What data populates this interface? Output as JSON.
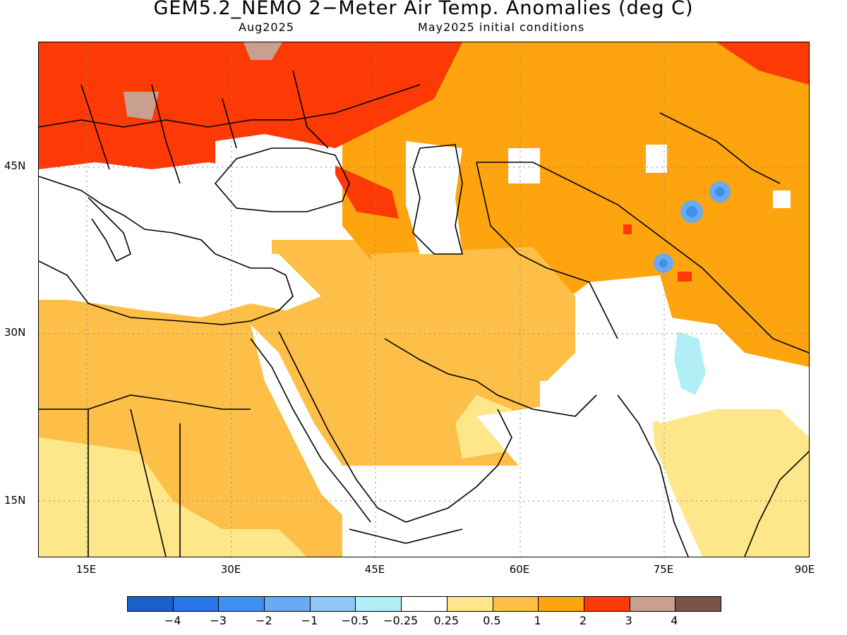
{
  "title": "GEM5.2_NEMO 2−Meter Air Temp. Anomalies (deg C)",
  "subtitle_left": "Aug2025",
  "subtitle_right": "May2025 initial conditions",
  "lat_labels": [
    "45N",
    "30N",
    "15N"
  ],
  "lon_labels": [
    "15E",
    "30E",
    "45E",
    "60E",
    "75E",
    "90E"
  ],
  "colorbar": {
    "colors": [
      "#1a5fcc",
      "#2a75e6",
      "#3f8ff0",
      "#6aaaf3",
      "#8ec6f5",
      "#b2eef5",
      "#ffffff",
      "#fee78a",
      "#fdbf47",
      "#fda40e",
      "#fd3a05",
      "#c9a08f",
      "#7a5445"
    ],
    "labels": [
      "−4",
      "−3",
      "−2",
      "−1",
      "−0.5",
      "−0.25",
      "0.25",
      "0.5",
      "1",
      "2",
      "3",
      "4"
    ]
  },
  "map": {
    "lon_range": [
      10,
      90
    ],
    "lat_range": [
      7.5,
      56
    ],
    "regions": [
      {
        "name": "europe-warm",
        "category": "2 to 3"
      },
      {
        "name": "central-asia",
        "category": "1 to 2"
      },
      {
        "name": "arabia",
        "category": "0.5 to 1"
      },
      {
        "name": "north-africa",
        "category": "0.5 to 1"
      },
      {
        "name": "india",
        "category": "-0.25 to 0.25"
      },
      {
        "name": "tibet-cold-spots",
        "category": "-2 to -1"
      }
    ]
  }
}
